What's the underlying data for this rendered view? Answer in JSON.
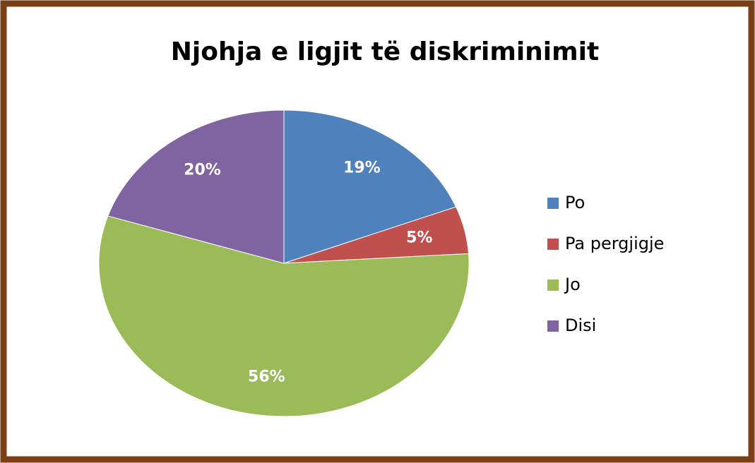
{
  "chart_data": {
    "type": "pie",
    "title": "Njohja e ligjit të diskriminimit",
    "categories": [
      "Po",
      "Pa pergjigje",
      "Jo",
      "Disi"
    ],
    "values": [
      19,
      5,
      56,
      20
    ],
    "value_labels": [
      "19%",
      "5%",
      "56%",
      "20%"
    ],
    "colors": [
      "#4f81bd",
      "#c0504d",
      "#9bbb59",
      "#8064a2"
    ],
    "legend": "right"
  }
}
